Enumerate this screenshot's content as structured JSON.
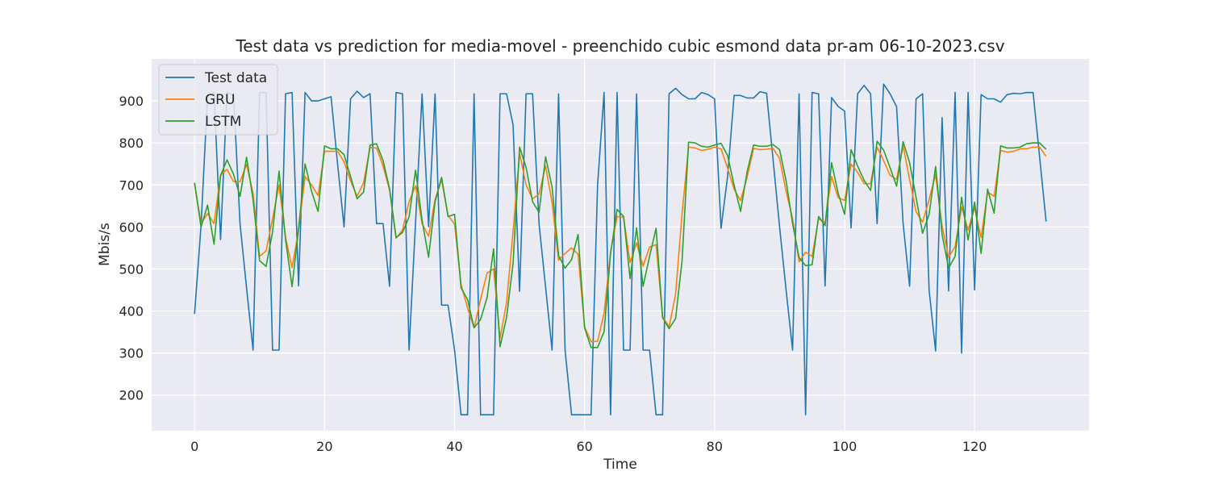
{
  "chart_data": {
    "type": "line",
    "title": "Test data vs prediction for media-movel - preenchido cubic esmond data pr-am 06-10-2023.csv",
    "xlabel": "Time",
    "ylabel": "Mbis/s",
    "xlim": [
      -6.6,
      137.6
    ],
    "ylim": [
      115,
      1000
    ],
    "xticks": [
      0,
      20,
      40,
      60,
      80,
      100,
      120
    ],
    "yticks": [
      200,
      300,
      400,
      500,
      600,
      700,
      800,
      900
    ],
    "grid": true,
    "legend_position": "top-left",
    "series": [
      {
        "name": "Test data",
        "color": "#1f77b4",
        "values": [
          393,
          603,
          913,
          920,
          570,
          920,
          913,
          607,
          455,
          307,
          920,
          920,
          307,
          307,
          917,
          920,
          460,
          920,
          900,
          900,
          905,
          910,
          750,
          600,
          905,
          923,
          908,
          917,
          608,
          608,
          459,
          920,
          917,
          307,
          612,
          917,
          601,
          917,
          414,
          414,
          307,
          153,
          153,
          917,
          153,
          153,
          153,
          917,
          917,
          843,
          447,
          917,
          917,
          607,
          457,
          307,
          917,
          307,
          153,
          153,
          153,
          153,
          700,
          920,
          153,
          920,
          307,
          307,
          917,
          307,
          307,
          153,
          153,
          917,
          930,
          915,
          905,
          905,
          920,
          915,
          905,
          597,
          720,
          913,
          913,
          907,
          907,
          922,
          918,
          760,
          600,
          450,
          307,
          917,
          153,
          920,
          917,
          460,
          908,
          887,
          876,
          598,
          917,
          937,
          917,
          608,
          940,
          917,
          886,
          609,
          459,
          905,
          917,
          450,
          305,
          860,
          448,
          920,
          300,
          920,
          450,
          915,
          905,
          905,
          897,
          915,
          918,
          917,
          920,
          920,
          767,
          613
        ]
      },
      {
        "name": "GRU",
        "color": "#ff7f0e",
        "values": [
          703,
          608,
          632,
          608,
          724,
          737,
          708,
          708,
          749,
          680,
          530,
          543,
          620,
          700,
          575,
          503,
          593,
          720,
          700,
          675,
          780,
          780,
          780,
          755,
          710,
          673,
          705,
          789,
          788,
          745,
          688,
          573,
          593,
          660,
          698,
          608,
          578,
          665,
          713,
          627,
          607,
          463,
          407,
          360,
          428,
          490,
          500,
          335,
          420,
          590,
          775,
          700,
          667,
          678,
          745,
          658,
          521,
          537,
          550,
          535,
          362,
          327,
          328,
          395,
          540,
          625,
          623,
          515,
          562,
          507,
          552,
          558,
          387,
          362,
          440,
          632,
          790,
          788,
          782,
          785,
          790,
          786,
          740,
          690,
          663,
          718,
          787,
          784,
          785,
          787,
          763,
          685,
          620,
          517,
          540,
          530,
          620,
          610,
          720,
          670,
          663,
          750,
          730,
          703,
          703,
          790,
          758,
          723,
          713,
          793,
          713,
          636,
          612,
          665,
          725,
          602,
          528,
          553,
          647,
          593,
          645,
          575,
          683,
          673,
          782,
          778,
          780,
          786,
          786,
          790,
          790,
          768
        ]
      },
      {
        "name": "LSTM",
        "color": "#2ca02c",
        "values": [
          705,
          600,
          652,
          559,
          722,
          760,
          725,
          673,
          766,
          665,
          520,
          506,
          588,
          733,
          570,
          458,
          595,
          750,
          685,
          637,
          793,
          786,
          786,
          772,
          720,
          667,
          683,
          795,
          798,
          758,
          691,
          575,
          587,
          624,
          735,
          616,
          528,
          660,
          718,
          625,
          630,
          455,
          427,
          360,
          380,
          432,
          548,
          315,
          385,
          513,
          790,
          742,
          660,
          635,
          767,
          695,
          532,
          502,
          522,
          582,
          360,
          313,
          313,
          351,
          537,
          642,
          625,
          477,
          598,
          459,
          530,
          597,
          384,
          358,
          382,
          520,
          802,
          800,
          792,
          790,
          795,
          799,
          770,
          700,
          637,
          731,
          795,
          792,
          792,
          796,
          784,
          710,
          608,
          527,
          508,
          510,
          625,
          603,
          753,
          681,
          630,
          784,
          745,
          711,
          687,
          804,
          783,
          741,
          697,
          803,
          753,
          670,
          585,
          630,
          744,
          582,
          502,
          530,
          671,
          569,
          659,
          537,
          690,
          633,
          793,
          788,
          788,
          790,
          798,
          800,
          800,
          785
        ]
      }
    ]
  }
}
